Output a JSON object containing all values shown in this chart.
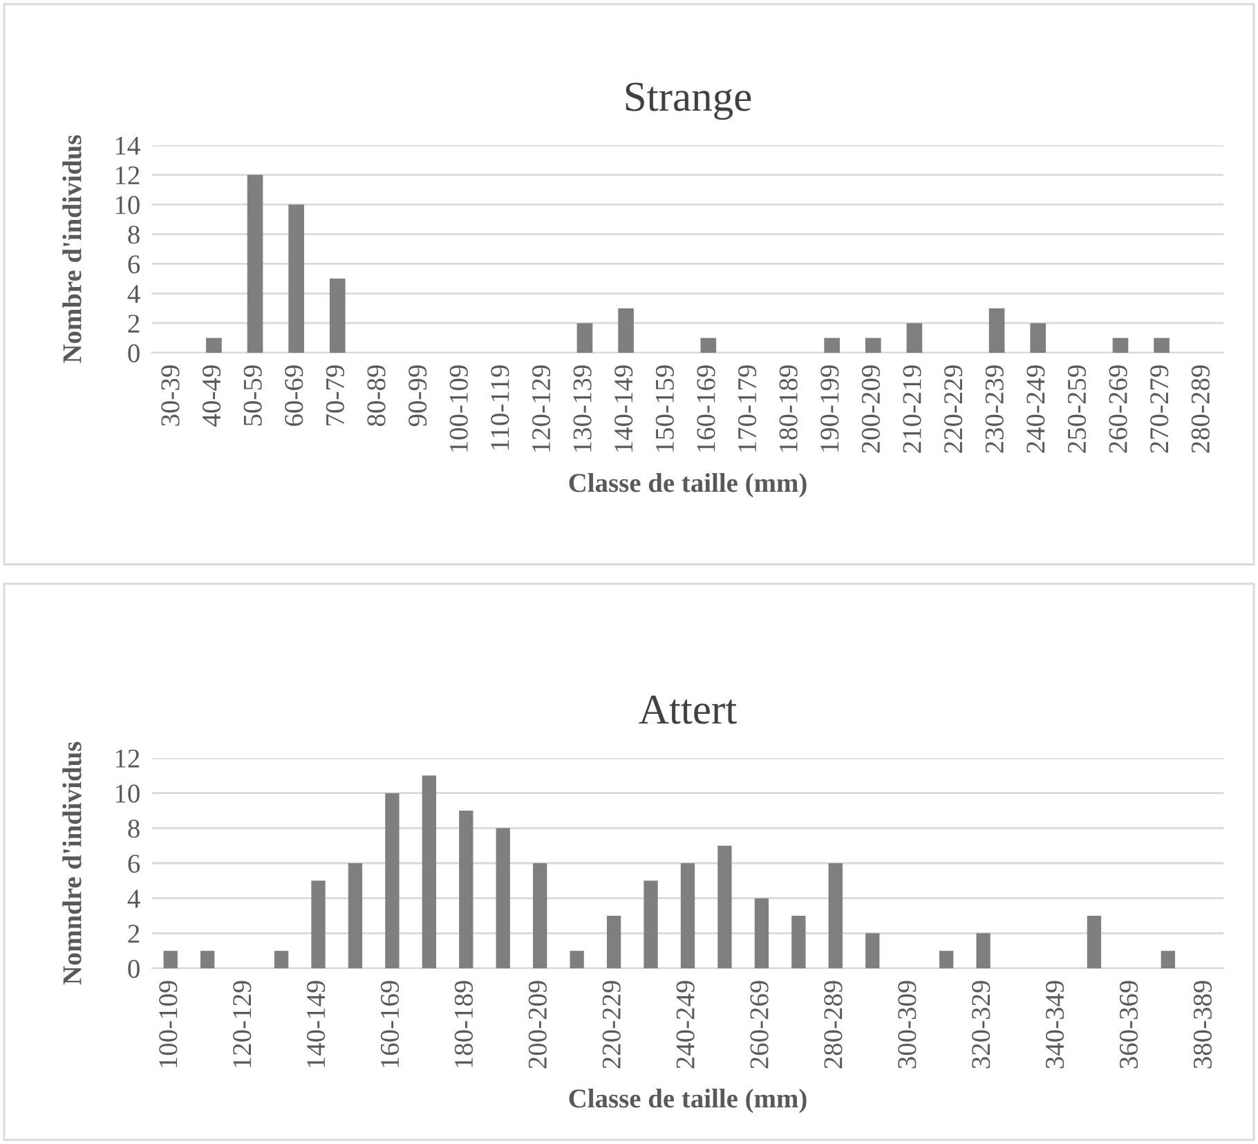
{
  "chart_data": [
    {
      "type": "bar",
      "title": "Strange",
      "xlabel": "Classe de taille (mm)",
      "ylabel": "Nombre d'individus",
      "categories": [
        "30-39",
        "40-49",
        "50-59",
        "60-69",
        "70-79",
        "80-89",
        "90-99",
        "100-109",
        "110-119",
        "120-129",
        "130-139",
        "140-149",
        "150-159",
        "160-169",
        "170-179",
        "180-189",
        "190-199",
        "200-209",
        "210-219",
        "220-229",
        "230-239",
        "240-249",
        "250-259",
        "260-269",
        "270-279",
        "280-289"
      ],
      "values": [
        0,
        1,
        12,
        10,
        5,
        0,
        0,
        0,
        0,
        0,
        2,
        3,
        0,
        1,
        0,
        0,
        1,
        1,
        2,
        0,
        3,
        2,
        0,
        1,
        1,
        0
      ],
      "color": "#7f7f7f",
      "ylim": [
        0,
        14
      ],
      "yticks": [
        0,
        2,
        4,
        6,
        8,
        10,
        12,
        14
      ],
      "grid": "y"
    },
    {
      "type": "bar",
      "title": "Attert",
      "xlabel": "Classe de taille (mm)",
      "ylabel": "Nomndre d'individus",
      "categories": [
        "100-109",
        null,
        "120-129",
        null,
        "140-149",
        null,
        "160-169",
        null,
        "180-189",
        null,
        "200-209",
        null,
        "220-229",
        null,
        "240-249",
        null,
        "260-269",
        null,
        "280-289",
        null,
        "300-309",
        null,
        "320-329",
        null,
        "340-349",
        null,
        "360-369",
        null,
        "380-389"
      ],
      "values": [
        1,
        1,
        0,
        1,
        5,
        6,
        10,
        11,
        9,
        8,
        6,
        1,
        3,
        5,
        6,
        7,
        4,
        3,
        6,
        2,
        0,
        1,
        2,
        0,
        0,
        3,
        0,
        1,
        0
      ],
      "color": "#7f7f7f",
      "ylim": [
        0,
        12
      ],
      "yticks": [
        0,
        2,
        4,
        6,
        8,
        10,
        12
      ],
      "grid": "y"
    }
  ]
}
